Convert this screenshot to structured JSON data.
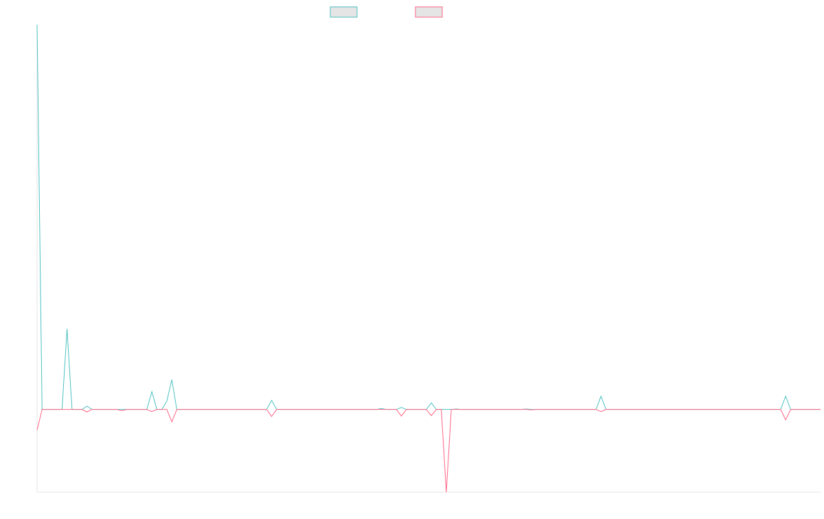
{
  "chart_data": {
    "type": "line",
    "title": "",
    "xlabel": "",
    "ylabel": "",
    "grid": false,
    "legend_placement": "top-center",
    "x_count": 158,
    "ylim": [
      -20,
      93
    ],
    "colors": {
      "series_a": "#4bc0c0",
      "series_b": "#ff6384",
      "legend_fill": "#e5e5e5",
      "axis": "#e6e6e6"
    },
    "series": [
      {
        "name": "",
        "color": "#4bc0c0",
        "points": [
          [
            0,
            93
          ],
          [
            1,
            0
          ],
          [
            5,
            0
          ],
          [
            6,
            19.5
          ],
          [
            7,
            0
          ],
          [
            9,
            0
          ],
          [
            10,
            0.8
          ],
          [
            11,
            0
          ],
          [
            22,
            0
          ],
          [
            23,
            4.3
          ],
          [
            24,
            0
          ],
          [
            25,
            0
          ],
          [
            26,
            2
          ],
          [
            27,
            7.2
          ],
          [
            28,
            0
          ],
          [
            46,
            0
          ],
          [
            47,
            2.2
          ],
          [
            48,
            0
          ],
          [
            68,
            0
          ],
          [
            69,
            0.2
          ],
          [
            70,
            0
          ],
          [
            72,
            0
          ],
          [
            73,
            0.5
          ],
          [
            74,
            0
          ],
          [
            78,
            0
          ],
          [
            79,
            1.6
          ],
          [
            80,
            0
          ],
          [
            83,
            0
          ],
          [
            84,
            0.1
          ],
          [
            85,
            0
          ],
          [
            97,
            0
          ],
          [
            98,
            0.1
          ],
          [
            99,
            0
          ],
          [
            112,
            0
          ],
          [
            113,
            3.2
          ],
          [
            114,
            0
          ],
          [
            149,
            0
          ],
          [
            150,
            3.2
          ],
          [
            151,
            0
          ],
          [
            157,
            0
          ]
        ]
      },
      {
        "name": "",
        "color": "#ff6384",
        "points": [
          [
            0,
            -5
          ],
          [
            1,
            0
          ],
          [
            9,
            0
          ],
          [
            10,
            -0.6
          ],
          [
            11,
            0
          ],
          [
            16,
            0
          ],
          [
            17,
            -0.3
          ],
          [
            18,
            0
          ],
          [
            22,
            0
          ],
          [
            23,
            -0.5
          ],
          [
            24,
            0
          ],
          [
            26,
            0
          ],
          [
            27,
            -3
          ],
          [
            28,
            0
          ],
          [
            46,
            0
          ],
          [
            47,
            -1.7
          ],
          [
            48,
            0
          ],
          [
            69,
            0
          ],
          [
            70,
            0
          ],
          [
            71,
            0
          ],
          [
            72,
            0
          ],
          [
            73,
            -1.6
          ],
          [
            74,
            0
          ],
          [
            78,
            0
          ],
          [
            79,
            -1.5
          ],
          [
            80,
            0
          ],
          [
            81,
            0
          ],
          [
            82,
            -20
          ],
          [
            83,
            0
          ],
          [
            98,
            0
          ],
          [
            99,
            -0.1
          ],
          [
            100,
            0
          ],
          [
            112,
            0
          ],
          [
            113,
            -0.5
          ],
          [
            114,
            0
          ],
          [
            149,
            0
          ],
          [
            150,
            -2.5
          ],
          [
            151,
            0
          ],
          [
            157,
            0
          ]
        ]
      }
    ]
  }
}
